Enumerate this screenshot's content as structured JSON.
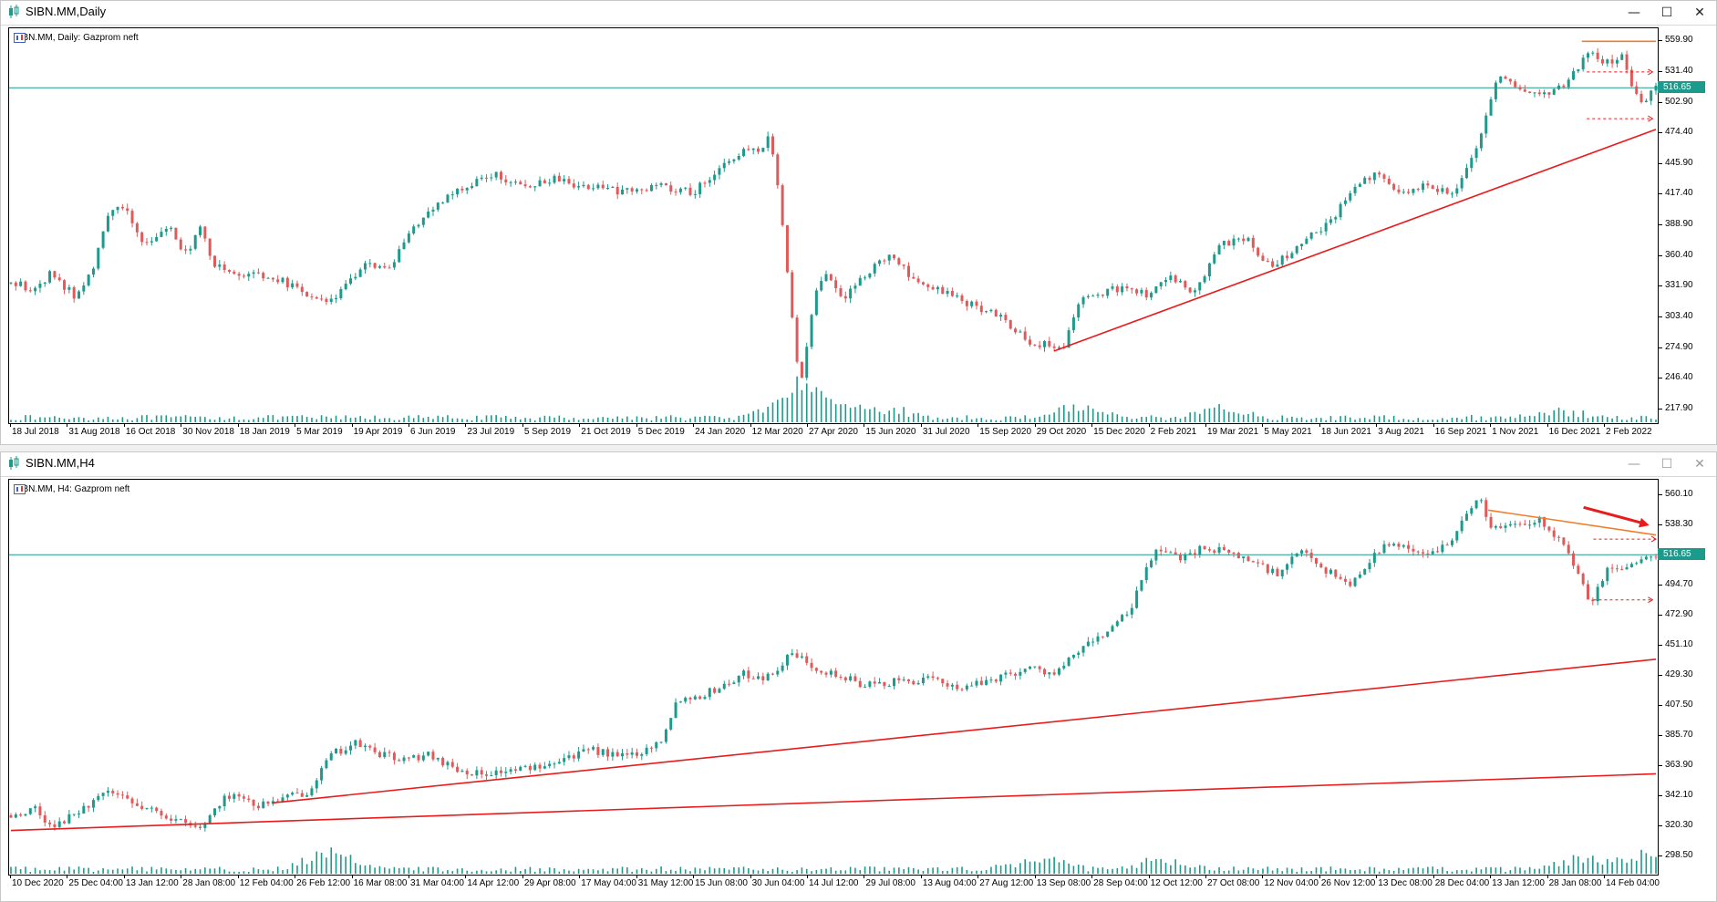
{
  "colors": {
    "bull": "#1e9a8c",
    "bear": "#e05a5a",
    "level_line": "#1e9a8c",
    "trend_line": "#e81c1c",
    "resistance_line": "#f07e2c",
    "dashed_arrow": "#e81c1c",
    "volume": "#1e9a8c",
    "price_tag_bg": "#1e9a8c"
  },
  "windows": [
    {
      "id": "daily",
      "title": "SIBN.MM,Daily",
      "header_text": "SIBN.MM, Daily:  Gazprom neft",
      "buttons": [
        "minimize-icon",
        "maximize-icon",
        "close-icon"
      ],
      "buttons_active": true,
      "price_labels": [
        "559.90",
        "531.40",
        "502.90",
        "474.40",
        "445.90",
        "417.40",
        "388.90",
        "360.40",
        "331.90",
        "303.40",
        "274.90",
        "246.40",
        "217.90"
      ],
      "price_min": 205.0,
      "price_max": 572.0,
      "current_price": "516.65",
      "time_labels": [
        "18 Jul 2018",
        "31 Aug 2018",
        "16 Oct 2018",
        "30 Nov 2018",
        "18 Jan 2019",
        "5 Mar 2019",
        "19 Apr 2019",
        "6 Jun 2019",
        "23 Jul 2019",
        "5 Sep 2019",
        "21 Oct 2019",
        "5 Dec 2019",
        "24 Jan 2020",
        "12 Mar 2020",
        "27 Apr 2020",
        "15 Jun 2020",
        "31 Jul 2020",
        "15 Sep 2020",
        "29 Oct 2020",
        "15 Dec 2020",
        "2 Feb 2021",
        "19 Mar 2021",
        "5 May 2021",
        "18 Jun 2021",
        "3 Aug 2021",
        "16 Sep 2021",
        "1 Nov 2021",
        "16 Dec 2021",
        "2 Feb 2022"
      ],
      "price_path": [
        [
          0.0,
          335
        ],
        [
          0.015,
          330
        ],
        [
          0.025,
          345
        ],
        [
          0.04,
          320
        ],
        [
          0.05,
          350
        ],
        [
          0.06,
          400
        ],
        [
          0.07,
          405
        ],
        [
          0.08,
          370
        ],
        [
          0.095,
          390
        ],
        [
          0.105,
          360
        ],
        [
          0.115,
          385
        ],
        [
          0.125,
          350
        ],
        [
          0.14,
          345
        ],
        [
          0.16,
          340
        ],
        [
          0.175,
          330
        ],
        [
          0.19,
          318
        ],
        [
          0.2,
          325
        ],
        [
          0.215,
          355
        ],
        [
          0.23,
          350
        ],
        [
          0.24,
          375
        ],
        [
          0.255,
          405
        ],
        [
          0.275,
          425
        ],
        [
          0.295,
          437
        ],
        [
          0.31,
          425
        ],
        [
          0.33,
          432
        ],
        [
          0.35,
          425
        ],
        [
          0.37,
          420
        ],
        [
          0.395,
          425
        ],
        [
          0.415,
          420
        ],
        [
          0.43,
          440
        ],
        [
          0.445,
          460
        ],
        [
          0.455,
          455
        ],
        [
          0.46,
          470
        ],
        [
          0.465,
          440
        ],
        [
          0.47,
          380
        ],
        [
          0.475,
          300
        ],
        [
          0.48,
          240
        ],
        [
          0.488,
          320
        ],
        [
          0.495,
          345
        ],
        [
          0.505,
          320
        ],
        [
          0.52,
          345
        ],
        [
          0.535,
          360
        ],
        [
          0.545,
          345
        ],
        [
          0.56,
          330
        ],
        [
          0.58,
          318
        ],
        [
          0.6,
          305
        ],
        [
          0.62,
          280
        ],
        [
          0.64,
          275
        ],
        [
          0.65,
          320
        ],
        [
          0.67,
          330
        ],
        [
          0.69,
          325
        ],
        [
          0.705,
          342
        ],
        [
          0.72,
          325
        ],
        [
          0.735,
          370
        ],
        [
          0.75,
          378
        ],
        [
          0.765,
          350
        ],
        [
          0.785,
          372
        ],
        [
          0.8,
          390
        ],
        [
          0.815,
          418
        ],
        [
          0.83,
          440
        ],
        [
          0.845,
          418
        ],
        [
          0.86,
          428
        ],
        [
          0.875,
          418
        ],
        [
          0.885,
          440
        ],
        [
          0.895,
          480
        ],
        [
          0.905,
          530
        ],
        [
          0.915,
          515
        ],
        [
          0.93,
          510
        ],
        [
          0.945,
          520
        ],
        [
          0.96,
          550
        ],
        [
          0.97,
          540
        ],
        [
          0.98,
          545
        ],
        [
          0.99,
          500
        ],
        [
          1.0,
          516
        ]
      ],
      "volume_spikes": [
        [
          0.47,
          10
        ],
        [
          0.48,
          26
        ],
        [
          0.49,
          22
        ],
        [
          0.53,
          17
        ],
        [
          0.65,
          18
        ],
        [
          0.735,
          15
        ],
        [
          0.94,
          12
        ]
      ],
      "hlines": [
        {
          "price": 516.65,
          "style": "level"
        }
      ],
      "trendlines": [
        {
          "x1": 0.634,
          "p1": 272,
          "x2": 1.0,
          "p2": 478,
          "style": "trend"
        },
        {
          "x1": 0.955,
          "p1": 559.9,
          "x2": 1.0,
          "p2": 559.9,
          "style": "resistance"
        }
      ],
      "dashed_arrows": [
        {
          "x1": 0.958,
          "p1": 531.4,
          "x2": 0.998,
          "p2": 531.4
        },
        {
          "x1": 0.958,
          "p1": 488,
          "x2": 0.998,
          "p2": 488
        }
      ],
      "big_arrows": []
    },
    {
      "id": "h4",
      "title": "SIBN.MM,H4",
      "header_text": "SIBN.MM, H4:  Gazprom neft",
      "buttons": [
        "minimize-icon",
        "maximize-icon",
        "close-icon"
      ],
      "buttons_active": false,
      "price_labels": [
        "560.10",
        "538.30",
        "516.50",
        "494.70",
        "472.90",
        "451.10",
        "429.30",
        "407.50",
        "385.70",
        "363.90",
        "342.10",
        "320.30",
        "298.50"
      ],
      "price_min": 285.0,
      "price_max": 571.0,
      "current_price": "516.65",
      "time_labels": [
        "10 Dec 2020",
        "25 Dec 04:00",
        "13 Jan 12:00",
        "28 Jan 08:00",
        "12 Feb 04:00",
        "26 Feb 12:00",
        "16 Mar 08:00",
        "31 Mar 04:00",
        "14 Apr 12:00",
        "29 Apr 08:00",
        "17 May 04:00",
        "31 May 12:00",
        "15 Jun 08:00",
        "30 Jun 04:00",
        "14 Jul 12:00",
        "29 Jul 08:00",
        "13 Aug 04:00",
        "27 Aug 12:00",
        "13 Sep 08:00",
        "28 Sep 04:00",
        "12 Oct 12:00",
        "27 Oct 08:00",
        "12 Nov 04:00",
        "26 Nov 12:00",
        "13 Dec 08:00",
        "28 Dec 04:00",
        "13 Jan 12:00",
        "28 Jan 08:00",
        "14 Feb 04:00"
      ],
      "price_path": [
        [
          0.0,
          328
        ],
        [
          0.015,
          332
        ],
        [
          0.025,
          318
        ],
        [
          0.04,
          330
        ],
        [
          0.06,
          345
        ],
        [
          0.075,
          335
        ],
        [
          0.09,
          330
        ],
        [
          0.105,
          322
        ],
        [
          0.115,
          318
        ],
        [
          0.125,
          335
        ],
        [
          0.135,
          345
        ],
        [
          0.15,
          335
        ],
        [
          0.165,
          340
        ],
        [
          0.18,
          345
        ],
        [
          0.195,
          372
        ],
        [
          0.21,
          380
        ],
        [
          0.225,
          372
        ],
        [
          0.24,
          368
        ],
        [
          0.255,
          372
        ],
        [
          0.27,
          362
        ],
        [
          0.285,
          358
        ],
        [
          0.3,
          360
        ],
        [
          0.315,
          362
        ],
        [
          0.335,
          370
        ],
        [
          0.355,
          375
        ],
        [
          0.37,
          370
        ],
        [
          0.385,
          375
        ],
        [
          0.395,
          382
        ],
        [
          0.405,
          412
        ],
        [
          0.42,
          415
        ],
        [
          0.435,
          423
        ],
        [
          0.445,
          430
        ],
        [
          0.46,
          428
        ],
        [
          0.475,
          445
        ],
        [
          0.49,
          435
        ],
        [
          0.505,
          428
        ],
        [
          0.52,
          422
        ],
        [
          0.54,
          425
        ],
        [
          0.56,
          426
        ],
        [
          0.58,
          420
        ],
        [
          0.6,
          428
        ],
        [
          0.62,
          435
        ],
        [
          0.635,
          430
        ],
        [
          0.65,
          448
        ],
        [
          0.665,
          460
        ],
        [
          0.68,
          475
        ],
        [
          0.695,
          520
        ],
        [
          0.71,
          515
        ],
        [
          0.725,
          522
        ],
        [
          0.74,
          518
        ],
        [
          0.755,
          512
        ],
        [
          0.77,
          502
        ],
        [
          0.785,
          520
        ],
        [
          0.8,
          505
        ],
        [
          0.815,
          495
        ],
        [
          0.83,
          520
        ],
        [
          0.845,
          525
        ],
        [
          0.86,
          515
        ],
        [
          0.875,
          528
        ],
        [
          0.885,
          545
        ],
        [
          0.893,
          560
        ],
        [
          0.9,
          535
        ],
        [
          0.915,
          540
        ],
        [
          0.93,
          542
        ],
        [
          0.94,
          530
        ],
        [
          0.95,
          510
        ],
        [
          0.96,
          480
        ],
        [
          0.97,
          505
        ],
        [
          0.985,
          510
        ],
        [
          1.0,
          516
        ]
      ],
      "volume_spikes": [
        [
          0.195,
          26
        ],
        [
          0.625,
          18
        ],
        [
          0.7,
          15
        ],
        [
          0.955,
          16
        ],
        [
          0.995,
          22
        ]
      ],
      "hlines": [
        {
          "price": 516.65,
          "style": "level"
        }
      ],
      "trendlines": [
        {
          "x1": 0.0,
          "p1": 317,
          "x2": 1.0,
          "p2": 358,
          "style": "trend"
        },
        {
          "x1": 0.159,
          "p1": 337,
          "x2": 1.0,
          "p2": 441,
          "style": "trend"
        },
        {
          "x1": 0.898,
          "p1": 549,
          "x2": 1.0,
          "p2": 531,
          "style": "resistance"
        }
      ],
      "dashed_arrows": [
        {
          "x1": 0.962,
          "p1": 528,
          "x2": 1.0,
          "p2": 528
        },
        {
          "x1": 0.962,
          "p1": 484,
          "x2": 0.998,
          "p2": 484
        }
      ],
      "big_arrows": [
        {
          "x1": 0.956,
          "p1": 551,
          "x2": 0.996,
          "p2": 538
        }
      ]
    }
  ]
}
